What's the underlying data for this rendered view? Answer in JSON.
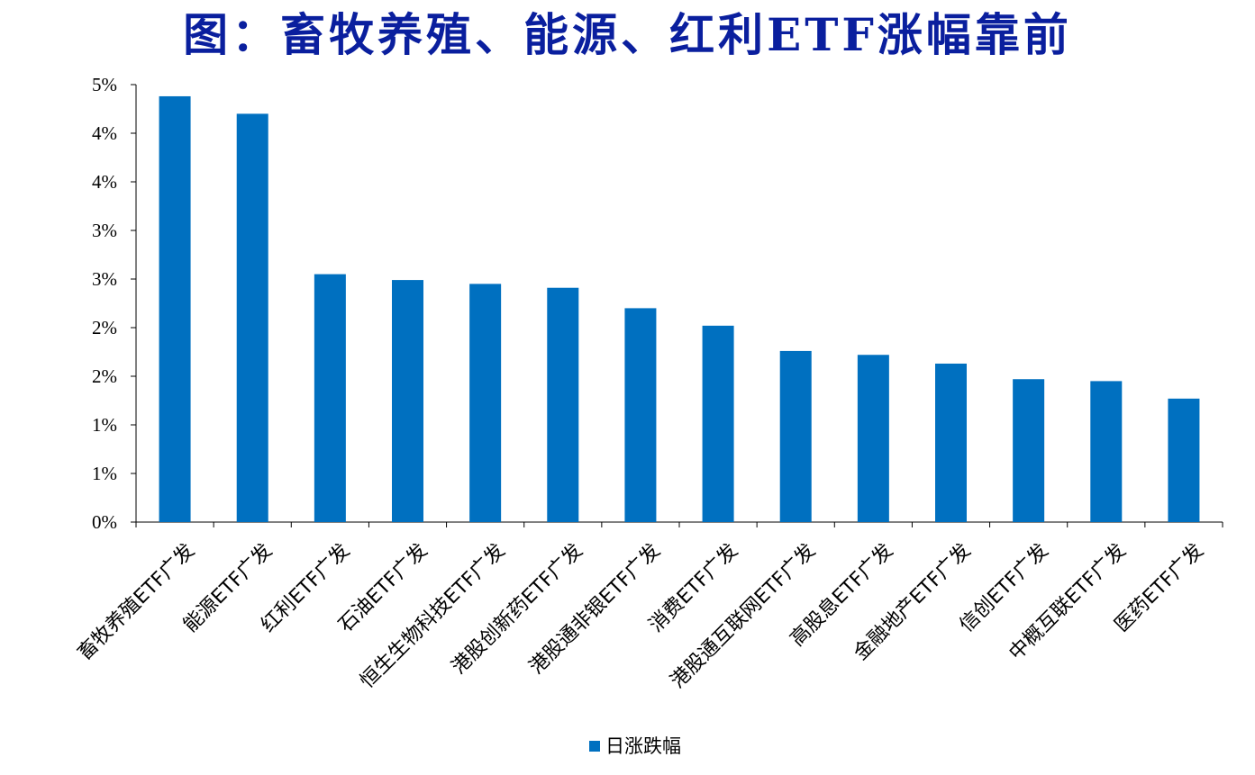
{
  "title": "图：畜牧养殖、能源、红利ETF涨幅靠前",
  "colors": {
    "title": "#0a1f9e",
    "bar": "#0070c0",
    "axis": "#000000"
  },
  "chart_data": {
    "type": "bar",
    "categories": [
      "畜牧养殖ETF广发",
      "能源ETF广发",
      "红利ETF广发",
      "石油ETF广发",
      "恒生生物科技ETF广发",
      "港股创新药ETF广发",
      "港股通非银ETF广发",
      "消费ETF广发",
      "港股通互联网ETF广发",
      "高股息ETF广发",
      "金融地产ETF广发",
      "信创ETF广发",
      "中概互联ETF广发",
      "医药ETF广发"
    ],
    "series": [
      {
        "name": "日涨跌幅",
        "values": [
          4.38,
          4.2,
          2.55,
          2.49,
          2.45,
          2.41,
          2.2,
          2.02,
          1.76,
          1.72,
          1.63,
          1.47,
          1.45,
          1.27
        ]
      }
    ],
    "yticks": [
      "0%",
      "1%",
      "1%",
      "2%",
      "2%",
      "3%",
      "3%",
      "4%",
      "4%",
      "5%"
    ],
    "ylim": [
      0,
      4.5
    ],
    "ytick_step": 0.5,
    "legend": "bottom-center",
    "grid": false
  }
}
